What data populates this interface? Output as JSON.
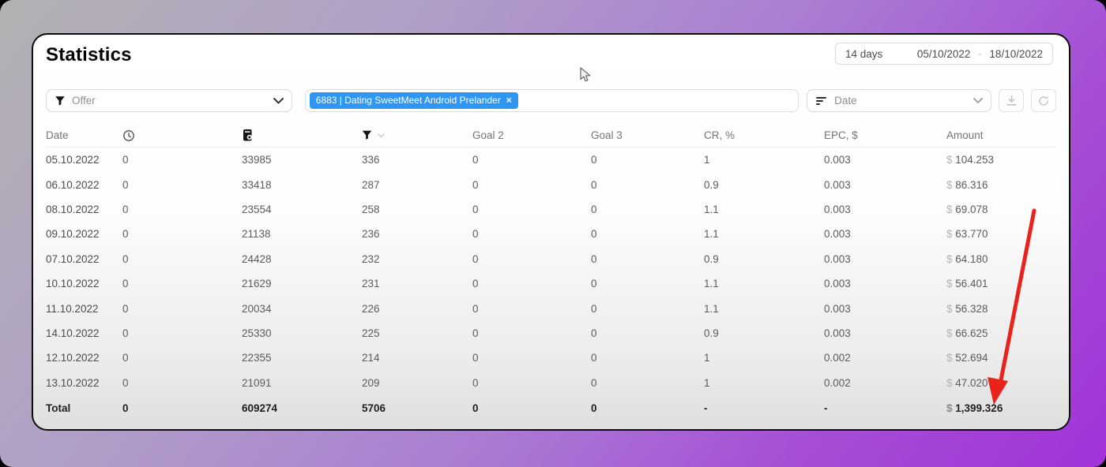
{
  "page": {
    "title": "Statistics"
  },
  "date_range": {
    "duration": "14 days",
    "start_date": "05/10/2022",
    "separator": "-",
    "end_date": "18/10/2022"
  },
  "toolbar": {
    "offer_filter": {
      "placeholder": "Offer",
      "icon": "filter-funnel-icon"
    },
    "selected_tag": {
      "label": "6883 | Dating SweetMeet Android Prelander",
      "close_label": "×",
      "color": "#2f96f3"
    },
    "group_by": {
      "value": "Date",
      "icon": "sort-descending-icon"
    },
    "download_button": {
      "icon": "download-icon"
    },
    "refresh_button": {
      "icon": "refresh-icon"
    }
  },
  "table": {
    "columns": [
      {
        "label": "Date"
      },
      {
        "icon": "clock-icon"
      },
      {
        "icon": "device-icon"
      },
      {
        "icon": "filter-icon",
        "extra": "chevron-down-icon"
      },
      {
        "label": "Goal 2"
      },
      {
        "label": "Goal 3"
      },
      {
        "label": "CR, %"
      },
      {
        "label": "EPC, $"
      },
      {
        "label": "Amount"
      }
    ],
    "currency_prefix": "$",
    "rows": [
      [
        "05.10.2022",
        "0",
        "33985",
        "336",
        "0",
        "0",
        "1",
        "0.003",
        "104.253"
      ],
      [
        "06.10.2022",
        "0",
        "33418",
        "287",
        "0",
        "0",
        "0.9",
        "0.003",
        "86.316"
      ],
      [
        "08.10.2022",
        "0",
        "23554",
        "258",
        "0",
        "0",
        "1.1",
        "0.003",
        "69.078"
      ],
      [
        "09.10.2022",
        "0",
        "21138",
        "236",
        "0",
        "0",
        "1.1",
        "0.003",
        "63.770"
      ],
      [
        "07.10.2022",
        "0",
        "24428",
        "232",
        "0",
        "0",
        "0.9",
        "0.003",
        "64.180"
      ],
      [
        "10.10.2022",
        "0",
        "21629",
        "231",
        "0",
        "0",
        "1.1",
        "0.003",
        "56.401"
      ],
      [
        "11.10.2022",
        "0",
        "20034",
        "226",
        "0",
        "0",
        "1.1",
        "0.003",
        "56.328"
      ],
      [
        "14.10.2022",
        "0",
        "25330",
        "225",
        "0",
        "0",
        "0.9",
        "0.003",
        "66.625"
      ],
      [
        "12.10.2022",
        "0",
        "22355",
        "214",
        "0",
        "0",
        "1",
        "0.002",
        "52.694"
      ],
      [
        "13.10.2022",
        "0",
        "21091",
        "209",
        "0",
        "0",
        "1",
        "0.002",
        "47.020"
      ]
    ],
    "total": [
      "Total",
      "0",
      "609274",
      "5706",
      "0",
      "0",
      "-",
      "-",
      "1,399.326"
    ]
  },
  "annotation": {
    "arrow_color": "#e8231b"
  }
}
